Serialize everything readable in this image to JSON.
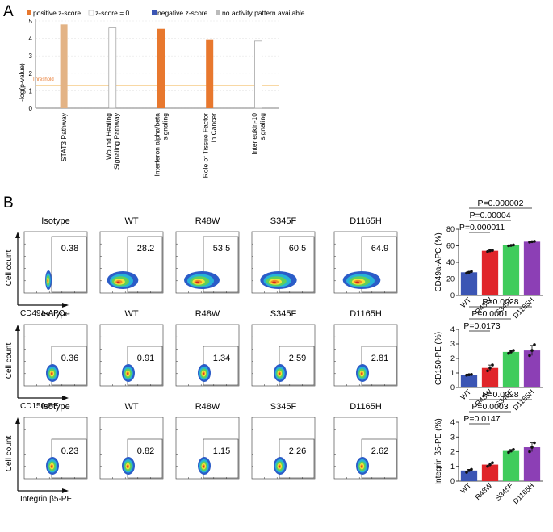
{
  "panel_a": {
    "label": "A",
    "legend": {
      "positive": "positive z-score",
      "zero": "z-score = 0",
      "negative": "negative z-score",
      "none": "no activity pattern available"
    },
    "ylabel": "-log(p-value)",
    "threshold_label": "Threshold",
    "colors": {
      "orange": "#e8782e",
      "light_orange": "#e3b385",
      "threshold": "#f1b24a",
      "grid": "#e6e6e6",
      "bar_outline": "#9a9a9a"
    }
  },
  "panel_b": {
    "label": "B",
    "samples": [
      "Isotype",
      "WT",
      "R48W",
      "S345F",
      "D1165H"
    ],
    "y_axis_label": "Cell count",
    "rows": [
      {
        "marker": "CD49a-APC",
        "percents": [
          "0.38",
          "28.2",
          "53.5",
          "60.5",
          "64.9"
        ]
      },
      {
        "marker": "CD150-PE",
        "percents": [
          "0.36",
          "0.91",
          "1.34",
          "2.59",
          "2.81"
        ]
      },
      {
        "marker": "Integrin β5-PE",
        "percents": [
          "0.23",
          "0.82",
          "1.15",
          "2.26",
          "2.62"
        ]
      }
    ],
    "bar_groups": [
      "WT",
      "R48W",
      "S345F",
      "D1165H"
    ],
    "bar_colors": [
      "#3b55b4",
      "#e0252a",
      "#3fcc5c",
      "#8c3fb5"
    ]
  },
  "chart_data": [
    {
      "type": "bar",
      "title": "",
      "xlabel": "",
      "ylabel": "-log(p-value)",
      "categories": [
        "STAT3 Pathway",
        "Wound Healing Signaling Pathway",
        "Interferon alpha/beta signaling",
        "Role of Tissue Factor in Cancer",
        "Interleukin-10 signaling"
      ],
      "values": [
        4.8,
        4.6,
        4.55,
        3.95,
        3.85
      ],
      "bar_styles": [
        "light-orange",
        "outline",
        "orange",
        "orange",
        "outline"
      ],
      "threshold": 1.3,
      "ylim": [
        0,
        5
      ],
      "yticks": [
        "0",
        "1",
        "2",
        "3",
        "4",
        "5"
      ],
      "grid": true,
      "legend": "top"
    },
    {
      "type": "bar",
      "ylabel": "CD49a-APC (%)",
      "categories": [
        "WT",
        "R48W",
        "S345F",
        "D1165H"
      ],
      "values": [
        28,
        54,
        60.5,
        65
      ],
      "points": [
        [
          27,
          28,
          29
        ],
        [
          53,
          54,
          54.5
        ],
        [
          60,
          60.5,
          61
        ],
        [
          64.5,
          65,
          65.5
        ]
      ],
      "errors": [
        1,
        1,
        0.5,
        0.5
      ],
      "ylim": [
        0,
        80
      ],
      "yticks": [
        "0",
        "20",
        "40",
        "60",
        "80"
      ],
      "comparisons": [
        "P=0.000011",
        "P=0.00004",
        "P=0.000002"
      ]
    },
    {
      "type": "bar",
      "ylabel": "CD150-PE (%)",
      "categories": [
        "WT",
        "R48W",
        "S345F",
        "D1165H"
      ],
      "values": [
        0.88,
        1.35,
        2.45,
        2.55
      ],
      "points": [
        [
          0.85,
          0.88,
          0.9
        ],
        [
          1.15,
          1.35,
          1.55
        ],
        [
          2.35,
          2.45,
          2.55
        ],
        [
          2.2,
          2.55,
          2.95
        ]
      ],
      "errors": [
        0.04,
        0.2,
        0.1,
        0.35
      ],
      "ylim": [
        0,
        4
      ],
      "yticks": [
        "0",
        "1",
        "2",
        "3",
        "4"
      ],
      "comparisons": [
        "P=0.0173",
        "P=0.0001",
        "P=0.0028"
      ]
    },
    {
      "type": "bar",
      "ylabel": "Integrin β5-PE (%)",
      "categories": [
        "WT",
        "R48W",
        "S345F",
        "D1165H"
      ],
      "values": [
        0.72,
        1.12,
        2.05,
        2.3
      ],
      "points": [
        [
          0.6,
          0.72,
          0.8
        ],
        [
          1.0,
          1.12,
          1.25
        ],
        [
          1.95,
          2.05,
          2.15
        ],
        [
          2.0,
          2.3,
          2.6
        ]
      ],
      "errors": [
        0.08,
        0.12,
        0.1,
        0.3
      ],
      "ylim": [
        0,
        4
      ],
      "yticks": [
        "0",
        "1",
        "2",
        "3",
        "4"
      ],
      "comparisons": [
        "P=0.0147",
        "P=0.0003",
        "P=0.0028"
      ]
    }
  ]
}
